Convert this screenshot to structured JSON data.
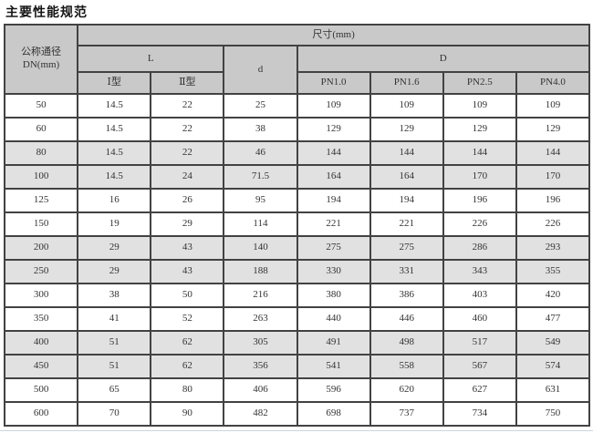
{
  "title": "主要性能规范",
  "colors": {
    "header_bg": "#c9c9c9",
    "row_shade_bg": "#e1e1e1",
    "border": "#424242",
    "text": "#333333",
    "bottom_divider": "#ccd5de"
  },
  "table": {
    "corner": {
      "line1": "公称通径",
      "line2": "DN(mm)"
    },
    "size_group": "尺寸(mm)",
    "l_group": "L",
    "d_column": "d",
    "d_group": "D",
    "subcols": [
      "Ⅰ型",
      "Ⅱ型",
      "PN1.0",
      "PN1.6",
      "PN2.5",
      "PN4.0"
    ],
    "rows": [
      [
        "50",
        "14.5",
        "22",
        "25",
        "109",
        "109",
        "109",
        "109"
      ],
      [
        "60",
        "14.5",
        "22",
        "38",
        "129",
        "129",
        "129",
        "129"
      ],
      [
        "80",
        "14.5",
        "22",
        "46",
        "144",
        "144",
        "144",
        "144"
      ],
      [
        "100",
        "14.5",
        "24",
        "71.5",
        "164",
        "164",
        "170",
        "170"
      ],
      [
        "125",
        "16",
        "26",
        "95",
        "194",
        "194",
        "196",
        "196"
      ],
      [
        "150",
        "19",
        "29",
        "114",
        "221",
        "221",
        "226",
        "226"
      ],
      [
        "200",
        "29",
        "43",
        "140",
        "275",
        "275",
        "286",
        "293"
      ],
      [
        "250",
        "29",
        "43",
        "188",
        "330",
        "331",
        "343",
        "355"
      ],
      [
        "300",
        "38",
        "50",
        "216",
        "380",
        "386",
        "403",
        "420"
      ],
      [
        "350",
        "41",
        "52",
        "263",
        "440",
        "446",
        "460",
        "477"
      ],
      [
        "400",
        "51",
        "62",
        "305",
        "491",
        "498",
        "517",
        "549"
      ],
      [
        "450",
        "51",
        "62",
        "356",
        "541",
        "558",
        "567",
        "574"
      ],
      [
        "500",
        "65",
        "80",
        "406",
        "596",
        "620",
        "627",
        "631"
      ],
      [
        "600",
        "70",
        "90",
        "482",
        "698",
        "737",
        "734",
        "750"
      ]
    ]
  }
}
